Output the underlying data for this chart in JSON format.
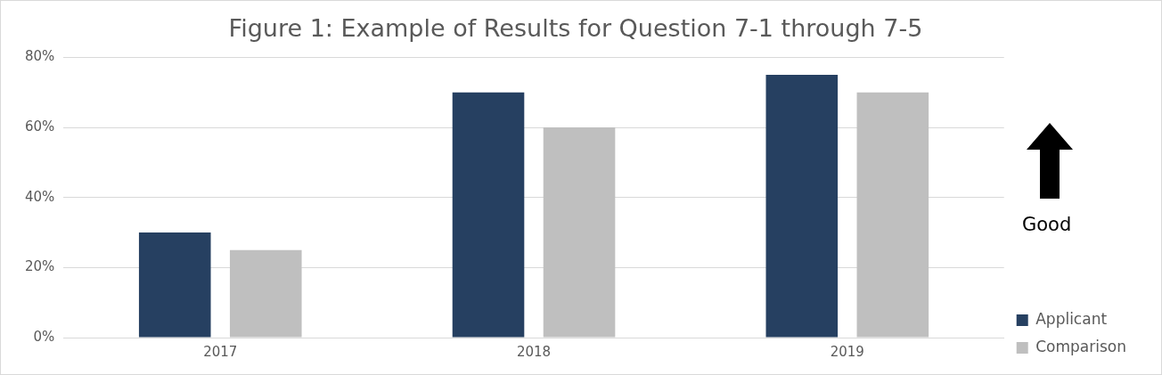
{
  "chart_data": {
    "type": "bar",
    "title": "Figure 1: Example of Results for Question 7-1 through 7-5",
    "categories": [
      "2017",
      "2018",
      "2019"
    ],
    "series": [
      {
        "name": "Applicant",
        "color": "#264061",
        "values": [
          30,
          70,
          75
        ]
      },
      {
        "name": "Comparison",
        "color": "#bfbfbf",
        "values": [
          25,
          60,
          70
        ]
      }
    ],
    "ylim": [
      0,
      80
    ],
    "yticks": [
      {
        "value": 0,
        "label": "0%"
      },
      {
        "value": 20,
        "label": "20%"
      },
      {
        "value": 40,
        "label": "40%"
      },
      {
        "value": 60,
        "label": "60%"
      },
      {
        "value": 80,
        "label": "80%"
      }
    ],
    "grid": "y",
    "legend": "bottom right",
    "annotations": [
      "Good"
    ]
  }
}
